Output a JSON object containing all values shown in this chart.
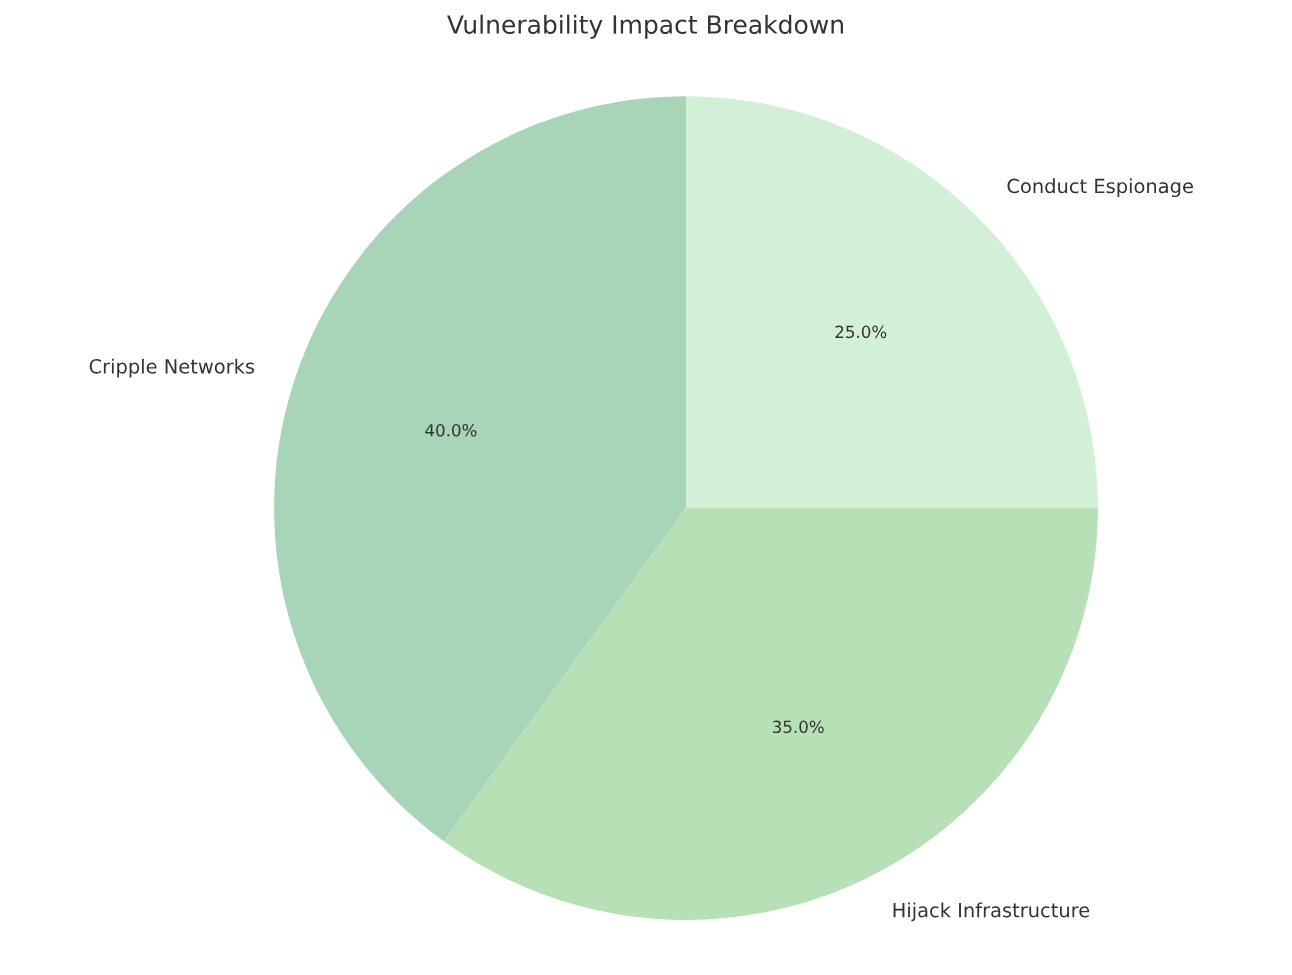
{
  "chart_data": {
    "type": "pie",
    "title": "Vulnerability Impact Breakdown",
    "categories": [
      "Cripple Networks",
      "Hijack Infrastructure",
      "Conduct Espionage"
    ],
    "values": [
      40,
      35,
      25
    ],
    "colors": [
      "#a8d5b8",
      "#b7e0b7",
      "#d2f0d5"
    ],
    "value_labels": [
      "40.0%",
      "35.0%",
      "25.0%"
    ]
  }
}
